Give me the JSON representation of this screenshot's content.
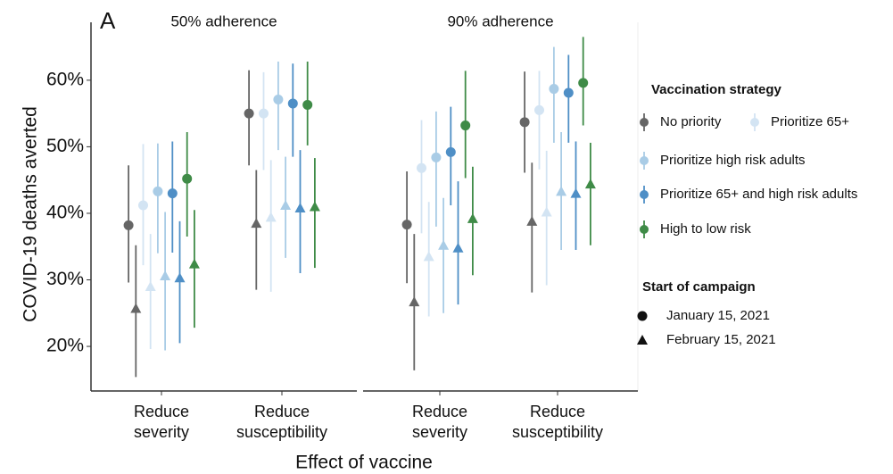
{
  "chart_data": {
    "type": "point_range",
    "panel_label": "A",
    "y_label": "COVID-19 deaths averted",
    "x_label": "Effect of vaccine",
    "categories": [
      "Reduce severity",
      "Reduce susceptibility"
    ],
    "ylim": [
      13.3,
      68.7
    ],
    "yticks": [
      {
        "value": 20,
        "label": "20%"
      },
      {
        "value": 30,
        "label": "30%"
      },
      {
        "value": 40,
        "label": "40%"
      },
      {
        "value": 50,
        "label": "50%"
      },
      {
        "value": 60,
        "label": "60%"
      }
    ],
    "legend_title": "Vaccination strategy",
    "strategies": [
      {
        "name": "No priority",
        "color": "#666666"
      },
      {
        "name": "Prioritize 65+",
        "color": "#d3e4f3"
      },
      {
        "name": "Prioritize high risk adults",
        "color": "#a9cce6"
      },
      {
        "name": "Prioritize 65+ and high risk adults",
        "color": "#4f8fc6"
      },
      {
        "name": "High to low risk",
        "color": "#3f8b47"
      }
    ],
    "start_title": "Start of campaign",
    "starts": [
      {
        "name": "January 15, 2021",
        "marker": "circle"
      },
      {
        "name": "February 15, 2021",
        "marker": "triangle"
      }
    ],
    "panels": [
      {
        "title": "50% adherence",
        "data": [
          [
            {
              "values": [
                38.2,
                55.0
              ],
              "lower": [
                29.6,
                47.2
              ],
              "upper": [
                47.2,
                61.5
              ]
            },
            {
              "values": [
                25.7,
                38.5
              ],
              "lower": [
                15.4,
                28.5
              ],
              "upper": [
                35.2,
                46.5
              ]
            }
          ],
          [
            {
              "values": [
                41.2,
                55.0
              ],
              "lower": [
                32.2,
                46.5
              ],
              "upper": [
                50.4,
                61.2
              ]
            },
            {
              "values": [
                29.0,
                39.4
              ],
              "lower": [
                19.6,
                28.2
              ],
              "upper": [
                36.9,
                48.0
              ]
            }
          ],
          [
            {
              "values": [
                43.3,
                57.1
              ],
              "lower": [
                34.0,
                49.5
              ],
              "upper": [
                50.5,
                62.8
              ]
            },
            {
              "values": [
                30.6,
                41.2
              ],
              "lower": [
                19.4,
                33.3
              ],
              "upper": [
                40.2,
                48.5
              ]
            }
          ],
          [
            {
              "values": [
                43.0,
                56.5
              ],
              "lower": [
                34.1,
                48.5
              ],
              "upper": [
                50.8,
                62.5
              ]
            },
            {
              "values": [
                30.3,
                40.8
              ],
              "lower": [
                20.5,
                31.0
              ],
              "upper": [
                38.8,
                49.5
              ]
            }
          ],
          [
            {
              "values": [
                45.2,
                56.3
              ],
              "lower": [
                36.5,
                50.2
              ],
              "upper": [
                52.2,
                62.8
              ]
            },
            {
              "values": [
                32.4,
                41.0
              ],
              "lower": [
                22.8,
                31.8
              ],
              "upper": [
                40.5,
                48.3
              ]
            }
          ]
        ]
      },
      {
        "title": "90% adherence",
        "data": [
          [
            {
              "values": [
                38.3,
                53.7
              ],
              "lower": [
                29.5,
                46.1
              ],
              "upper": [
                46.3,
                61.3
              ]
            },
            {
              "values": [
                26.7,
                38.8
              ],
              "lower": [
                16.4,
                28.1
              ],
              "upper": [
                36.9,
                47.6
              ]
            }
          ],
          [
            {
              "values": [
                46.8,
                55.5
              ],
              "lower": [
                37.0,
                46.6
              ],
              "upper": [
                54.0,
                61.4
              ]
            },
            {
              "values": [
                33.5,
                40.2
              ],
              "lower": [
                24.5,
                29.2
              ],
              "upper": [
                41.7,
                49.4
              ]
            }
          ],
          [
            {
              "values": [
                48.4,
                58.7
              ],
              "lower": [
                38.0,
                50.6
              ],
              "upper": [
                55.3,
                65.0
              ]
            },
            {
              "values": [
                35.2,
                43.3
              ],
              "lower": [
                25.0,
                34.5
              ],
              "upper": [
                42.3,
                52.2
              ]
            }
          ],
          [
            {
              "values": [
                49.2,
                58.1
              ],
              "lower": [
                41.2,
                50.6
              ],
              "upper": [
                56.0,
                63.8
              ]
            },
            {
              "values": [
                34.8,
                43.0
              ],
              "lower": [
                26.3,
                34.5
              ],
              "upper": [
                44.8,
                50.8
              ]
            }
          ],
          [
            {
              "values": [
                53.2,
                59.6
              ],
              "lower": [
                45.3,
                53.2
              ],
              "upper": [
                61.4,
                66.5
              ]
            },
            {
              "values": [
                39.2,
                44.4
              ],
              "lower": [
                30.7,
                35.2
              ],
              "upper": [
                47.0,
                50.6
              ]
            }
          ]
        ]
      }
    ]
  }
}
